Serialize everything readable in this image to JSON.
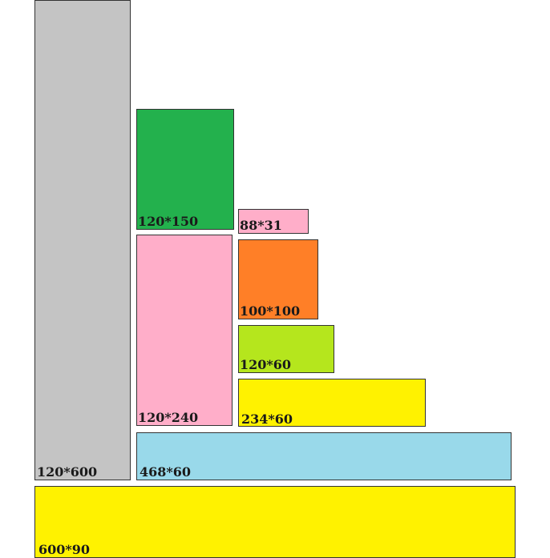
{
  "boxes": [
    {
      "id": "120x600",
      "label": "120*600",
      "color": "#c4c4c4"
    },
    {
      "id": "120x150",
      "label": "120*150",
      "color": "#23b14d"
    },
    {
      "id": "120x240",
      "label": "120*240",
      "color": "#ffaec9"
    },
    {
      "id": "88x31",
      "label": "88*31",
      "color": "#ffaec9"
    },
    {
      "id": "100x100",
      "label": "100*100",
      "color": "#ff7f27"
    },
    {
      "id": "120x60",
      "label": "120*60",
      "color": "#b5e61d"
    },
    {
      "id": "234x60",
      "label": "234*60",
      "color": "#fff200"
    },
    {
      "id": "468x60",
      "label": "468*60",
      "color": "#99d9ea"
    },
    {
      "id": "600x90",
      "label": "600*90",
      "color": "#fff200"
    }
  ]
}
